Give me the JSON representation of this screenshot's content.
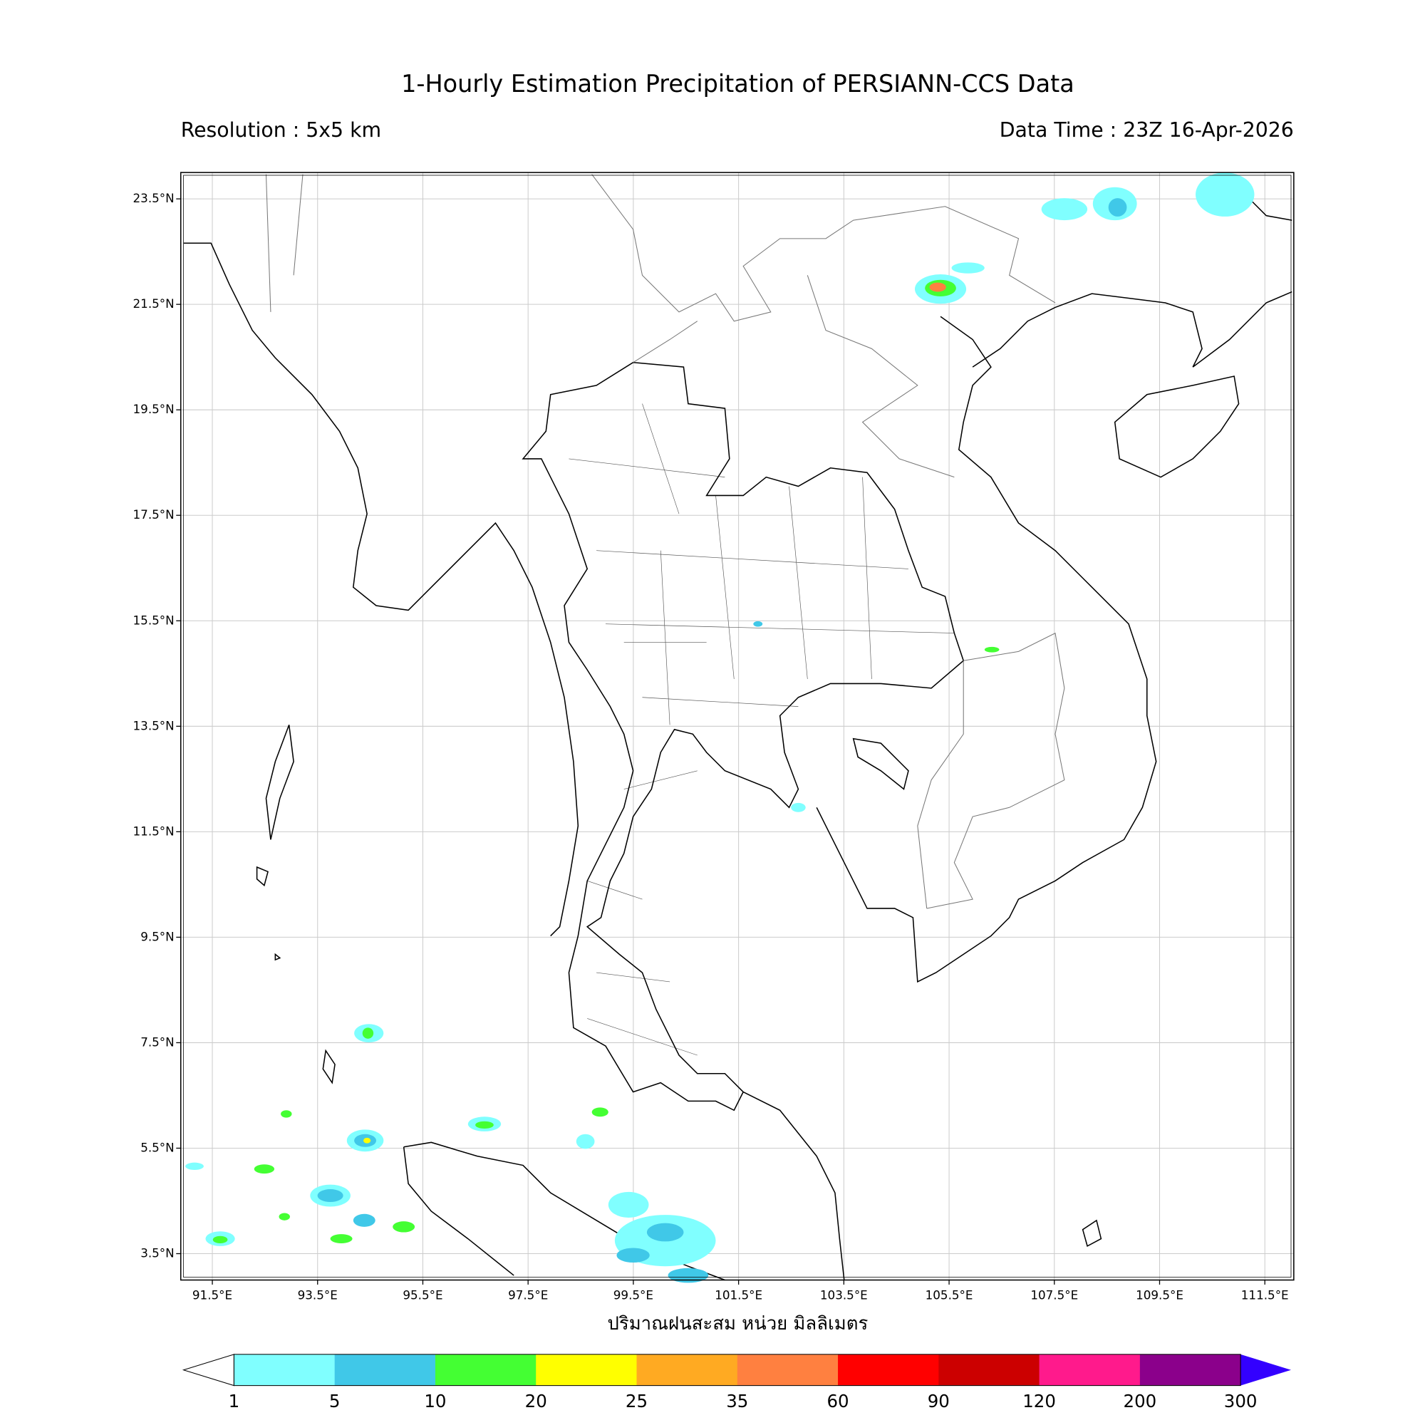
{
  "title": "1-Hourly Estimation Precipitation of PERSIANN-CCS Data",
  "resolution": "Resolution : 5x5 km",
  "data_time": "Data Time : 23Z 16-Apr-2026",
  "map": {
    "xlim": [
      90.9,
      112.05
    ],
    "ylim": [
      3.0,
      24.0
    ],
    "lon_ticks": [
      {
        "value": 91.5,
        "label": "91.5°E"
      },
      {
        "value": 93.5,
        "label": "93.5°E"
      },
      {
        "value": 95.5,
        "label": "95.5°E"
      },
      {
        "value": 97.5,
        "label": "97.5°E"
      },
      {
        "value": 99.5,
        "label": "99.5°E"
      },
      {
        "value": 101.5,
        "label": "101.5°E"
      },
      {
        "value": 103.5,
        "label": "103.5°E"
      },
      {
        "value": 105.5,
        "label": "105.5°E"
      },
      {
        "value": 107.5,
        "label": "107.5°E"
      },
      {
        "value": 109.5,
        "label": "109.5°E"
      },
      {
        "value": 111.5,
        "label": "111.5°E"
      }
    ],
    "lat_ticks": [
      {
        "value": 3.5,
        "label": "3.5°N"
      },
      {
        "value": 5.5,
        "label": "5.5°N"
      },
      {
        "value": 7.5,
        "label": "7.5°N"
      },
      {
        "value": 9.5,
        "label": "9.5°N"
      },
      {
        "value": 11.5,
        "label": "11.5°N"
      },
      {
        "value": 13.5,
        "label": "13.5°N"
      },
      {
        "value": 15.5,
        "label": "15.5°N"
      },
      {
        "value": 17.5,
        "label": "17.5°N"
      },
      {
        "value": 19.5,
        "label": "19.5°N"
      },
      {
        "value": 21.5,
        "label": "21.5°N"
      },
      {
        "value": 23.5,
        "label": "23.5°N"
      }
    ]
  },
  "colorbar": {
    "label": "ปริมาณฝนสะสม หน่วย มิลลิเมตร",
    "levels": [
      1,
      5,
      10,
      20,
      25,
      35,
      60,
      90,
      120,
      200,
      300
    ],
    "colors": [
      "#80ffff",
      "#40c8e8",
      "#44ff33",
      "#ffff00",
      "#ffaa22",
      "#ff8040",
      "#ff0000",
      "#cc0000",
      "#ff1a8c",
      "#8b008b"
    ],
    "under_color": "#ffffff",
    "over_color": "#3300ff"
  }
}
